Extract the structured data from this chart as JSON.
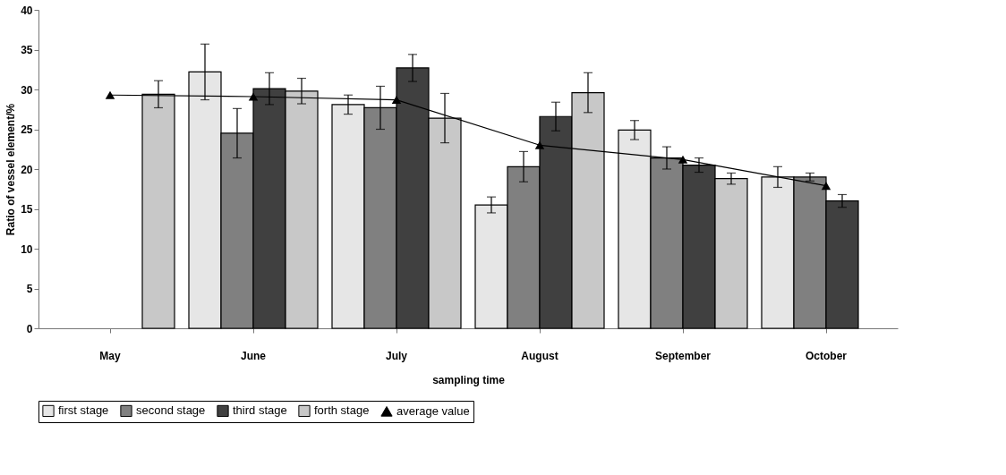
{
  "chart_data": {
    "type": "bar",
    "xlabel": "sampling time",
    "ylabel": "Ratio of vessel element/%",
    "categories": [
      "May",
      "June",
      "July",
      "August",
      "September",
      "October"
    ],
    "ylim": [
      0,
      40
    ],
    "yticks": [
      0,
      5,
      10,
      15,
      20,
      25,
      30,
      35,
      40
    ],
    "grid": false,
    "legend": "bottom",
    "series": [
      {
        "name": "first stage",
        "color": "#e6e6e6",
        "values": [
          null,
          32.2,
          28.1,
          15.5,
          24.9,
          19.0
        ],
        "errors": [
          null,
          3.5,
          1.2,
          1.0,
          1.2,
          1.3
        ]
      },
      {
        "name": "second stage",
        "color": "#808080",
        "values": [
          null,
          24.5,
          27.7,
          20.3,
          21.4,
          19.0
        ],
        "errors": [
          null,
          3.1,
          2.7,
          1.9,
          1.4,
          0.5
        ]
      },
      {
        "name": "third stage",
        "color": "#404040",
        "values": [
          null,
          30.1,
          32.7,
          26.6,
          20.5,
          16.0
        ],
        "errors": [
          null,
          2.0,
          1.7,
          1.8,
          0.9,
          0.8
        ]
      },
      {
        "name": "forth stage",
        "color": "#c8c8c8",
        "values": [
          29.4,
          29.8,
          26.4,
          29.6,
          18.8,
          null
        ],
        "errors": [
          1.7,
          1.6,
          3.1,
          2.5,
          0.7,
          null
        ]
      },
      {
        "name": "average value",
        "type": "line",
        "color": "#000000",
        "marker": "triangle",
        "values": [
          29.3,
          29.1,
          28.7,
          23.0,
          21.2,
          17.9
        ]
      }
    ]
  }
}
